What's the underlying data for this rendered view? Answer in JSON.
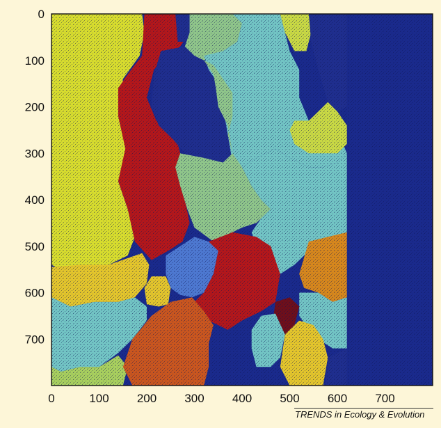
{
  "chart_data": {
    "type": "heatmap",
    "title": "",
    "xlabel": "",
    "ylabel": "",
    "xlim": [
      0,
      800
    ],
    "ylim": [
      0,
      800
    ],
    "y_axis_inverted": true,
    "grid": false,
    "legend": "none",
    "x_ticks": [
      "0",
      "100",
      "200",
      "300",
      "400",
      "500",
      "600",
      "700"
    ],
    "y_ticks": [
      "0",
      "100",
      "200",
      "300",
      "400",
      "500",
      "600",
      "700"
    ],
    "background_color": "#1a2a8c",
    "colormap": {
      "yellow": "#d7dc2e",
      "red": "#b3171b",
      "dark_blue": "#1f2e8e",
      "sage_green": "#8fc58a",
      "teal": "#72c4c4",
      "olive_yellow": "#c9d944",
      "gold": "#e3c52c",
      "orange": "#d6871d",
      "burnt_orange": "#c9561f",
      "blue": "#4d78d0",
      "dark_red": "#6e0f1b",
      "light_green": "#a8cf5e"
    },
    "regions": [
      {
        "color": "yellow",
        "points": [
          [
            0,
            0
          ],
          [
            190,
            0
          ],
          [
            195,
            40
          ],
          [
            185,
            90
          ],
          [
            150,
            140
          ],
          [
            150,
            220
          ],
          [
            160,
            290
          ],
          [
            140,
            360
          ],
          [
            160,
            420
          ],
          [
            175,
            480
          ],
          [
            160,
            520
          ],
          [
            120,
            540
          ],
          [
            100,
            545
          ],
          [
            60,
            540
          ],
          [
            20,
            550
          ],
          [
            0,
            540
          ]
        ]
      },
      {
        "color": "gold",
        "points": [
          [
            0,
            545
          ],
          [
            60,
            540
          ],
          [
            120,
            540
          ],
          [
            190,
            515
          ],
          [
            205,
            540
          ],
          [
            200,
            580
          ],
          [
            175,
            610
          ],
          [
            140,
            620
          ],
          [
            90,
            620
          ],
          [
            40,
            630
          ],
          [
            0,
            610
          ]
        ]
      },
      {
        "color": "gold",
        "points": [
          [
            210,
            565
          ],
          [
            240,
            565
          ],
          [
            250,
            590
          ],
          [
            245,
            625
          ],
          [
            225,
            630
          ],
          [
            200,
            625
          ],
          [
            195,
            590
          ]
        ]
      },
      {
        "color": "teal",
        "points": [
          [
            0,
            610
          ],
          [
            40,
            630
          ],
          [
            90,
            620
          ],
          [
            140,
            620
          ],
          [
            175,
            610
          ],
          [
            200,
            630
          ],
          [
            200,
            660
          ],
          [
            170,
            700
          ],
          [
            140,
            730
          ],
          [
            100,
            760
          ],
          [
            60,
            760
          ],
          [
            20,
            770
          ],
          [
            0,
            760
          ]
        ]
      },
      {
        "color": "light_green",
        "points": [
          [
            0,
            760
          ],
          [
            20,
            770
          ],
          [
            60,
            760
          ],
          [
            100,
            760
          ],
          [
            140,
            735
          ],
          [
            160,
            760
          ],
          [
            150,
            800
          ],
          [
            0,
            800
          ]
        ]
      },
      {
        "color": "red",
        "points": [
          [
            195,
            0
          ],
          [
            290,
            0
          ],
          [
            290,
            40
          ],
          [
            270,
            70
          ],
          [
            240,
            90
          ],
          [
            215,
            120
          ],
          [
            200,
            180
          ],
          [
            220,
            230
          ],
          [
            260,
            260
          ],
          [
            270,
            300
          ],
          [
            265,
            350
          ],
          [
            280,
            400
          ],
          [
            290,
            450
          ],
          [
            275,
            490
          ],
          [
            245,
            510
          ],
          [
            210,
            530
          ],
          [
            175,
            490
          ],
          [
            160,
            420
          ],
          [
            140,
            360
          ],
          [
            155,
            290
          ],
          [
            140,
            220
          ],
          [
            140,
            160
          ],
          [
            160,
            130
          ],
          [
            190,
            90
          ]
        ]
      },
      {
        "color": "dark_blue",
        "points": [
          [
            260,
            0
          ],
          [
            295,
            0
          ],
          [
            300,
            30
          ],
          [
            290,
            60
          ],
          [
            265,
            60
          ]
        ]
      },
      {
        "color": "dark_blue",
        "points": [
          [
            230,
            80
          ],
          [
            280,
            70
          ],
          [
            320,
            100
          ],
          [
            340,
            130
          ],
          [
            345,
            160
          ],
          [
            350,
            200
          ],
          [
            370,
            240
          ],
          [
            380,
            300
          ],
          [
            360,
            320
          ],
          [
            320,
            310
          ],
          [
            280,
            300
          ],
          [
            255,
            270
          ],
          [
            225,
            240
          ],
          [
            210,
            200
          ],
          [
            215,
            130
          ]
        ]
      },
      {
        "color": "sage_green",
        "points": [
          [
            290,
            0
          ],
          [
            380,
            0
          ],
          [
            400,
            20
          ],
          [
            390,
            60
          ],
          [
            360,
            80
          ],
          [
            320,
            100
          ],
          [
            300,
            90
          ],
          [
            280,
            70
          ],
          [
            290,
            40
          ]
        ]
      },
      {
        "color": "teal",
        "points": [
          [
            380,
            0
          ],
          [
            480,
            0
          ],
          [
            490,
            40
          ],
          [
            500,
            80
          ],
          [
            520,
            120
          ],
          [
            520,
            180
          ],
          [
            540,
            230
          ],
          [
            560,
            220
          ],
          [
            600,
            250
          ],
          [
            620,
            300
          ],
          [
            600,
            320
          ],
          [
            570,
            330
          ],
          [
            540,
            330
          ],
          [
            500,
            310
          ],
          [
            470,
            290
          ],
          [
            450,
            300
          ],
          [
            430,
            310
          ],
          [
            400,
            330
          ],
          [
            380,
            320
          ],
          [
            370,
            260
          ],
          [
            360,
            200
          ],
          [
            350,
            150
          ],
          [
            330,
            120
          ],
          [
            320,
            90
          ],
          [
            360,
            80
          ],
          [
            390,
            60
          ],
          [
            400,
            20
          ]
        ]
      },
      {
        "color": "sage_green",
        "points": [
          [
            320,
            100
          ],
          [
            340,
            110
          ],
          [
            360,
            140
          ],
          [
            380,
            170
          ],
          [
            380,
            220
          ],
          [
            370,
            260
          ],
          [
            380,
            300
          ],
          [
            400,
            330
          ],
          [
            420,
            370
          ],
          [
            440,
            400
          ],
          [
            460,
            420
          ],
          [
            430,
            450
          ],
          [
            400,
            460
          ],
          [
            380,
            470
          ],
          [
            340,
            490
          ],
          [
            300,
            460
          ],
          [
            285,
            420
          ],
          [
            270,
            370
          ],
          [
            260,
            330
          ],
          [
            270,
            300
          ],
          [
            320,
            310
          ],
          [
            360,
            320
          ],
          [
            380,
            300
          ],
          [
            370,
            240
          ],
          [
            350,
            200
          ],
          [
            345,
            160
          ],
          [
            340,
            130
          ]
        ]
      },
      {
        "color": "olive_yellow",
        "points": [
          [
            480,
            0
          ],
          [
            540,
            0
          ],
          [
            545,
            40
          ],
          [
            535,
            80
          ],
          [
            510,
            80
          ],
          [
            490,
            40
          ]
        ]
      },
      {
        "color": "dark_blue",
        "points": [
          [
            540,
            0
          ],
          [
            620,
            0
          ],
          [
            620,
            200
          ],
          [
            600,
            210
          ],
          [
            580,
            190
          ],
          [
            560,
            120
          ],
          [
            545,
            60
          ]
        ]
      },
      {
        "color": "olive_yellow",
        "points": [
          [
            510,
            230
          ],
          [
            540,
            230
          ],
          [
            560,
            210
          ],
          [
            580,
            190
          ],
          [
            600,
            210
          ],
          [
            620,
            240
          ],
          [
            620,
            280
          ],
          [
            600,
            300
          ],
          [
            570,
            300
          ],
          [
            540,
            300
          ],
          [
            510,
            280
          ],
          [
            500,
            250
          ]
        ]
      },
      {
        "color": "teal",
        "points": [
          [
            400,
            330
          ],
          [
            430,
            310
          ],
          [
            450,
            300
          ],
          [
            470,
            290
          ],
          [
            500,
            310
          ],
          [
            540,
            330
          ],
          [
            570,
            330
          ],
          [
            600,
            320
          ],
          [
            620,
            300
          ],
          [
            620,
            470
          ],
          [
            590,
            480
          ],
          [
            560,
            500
          ],
          [
            530,
            520
          ],
          [
            510,
            540
          ],
          [
            480,
            560
          ],
          [
            460,
            540
          ],
          [
            430,
            500
          ],
          [
            420,
            470
          ],
          [
            440,
            440
          ],
          [
            460,
            420
          ],
          [
            440,
            400
          ],
          [
            420,
            370
          ]
        ]
      },
      {
        "color": "orange",
        "points": [
          [
            540,
            490
          ],
          [
            580,
            480
          ],
          [
            620,
            470
          ],
          [
            620,
            610
          ],
          [
            590,
            620
          ],
          [
            560,
            600
          ],
          [
            530,
            590
          ],
          [
            520,
            560
          ]
        ]
      },
      {
        "color": "teal",
        "points": [
          [
            520,
            600
          ],
          [
            560,
            600
          ],
          [
            590,
            620
          ],
          [
            620,
            610
          ],
          [
            620,
            720
          ],
          [
            590,
            720
          ],
          [
            560,
            700
          ],
          [
            540,
            680
          ],
          [
            520,
            650
          ]
        ]
      },
      {
        "color": "blue",
        "points": [
          [
            240,
            520
          ],
          [
            270,
            500
          ],
          [
            300,
            480
          ],
          [
            330,
            490
          ],
          [
            350,
            510
          ],
          [
            340,
            560
          ],
          [
            320,
            600
          ],
          [
            295,
            610
          ],
          [
            270,
            605
          ],
          [
            250,
            590
          ],
          [
            240,
            560
          ]
        ]
      },
      {
        "color": "red",
        "points": [
          [
            330,
            490
          ],
          [
            380,
            470
          ],
          [
            430,
            480
          ],
          [
            460,
            500
          ],
          [
            480,
            560
          ],
          [
            470,
            620
          ],
          [
            440,
            640
          ],
          [
            400,
            660
          ],
          [
            370,
            680
          ],
          [
            330,
            660
          ],
          [
            300,
            620
          ],
          [
            320,
            600
          ],
          [
            340,
            560
          ],
          [
            350,
            510
          ]
        ]
      },
      {
        "color": "burnt_orange",
        "points": [
          [
            170,
            700
          ],
          [
            210,
            650
          ],
          [
            250,
            620
          ],
          [
            295,
            610
          ],
          [
            320,
            640
          ],
          [
            340,
            670
          ],
          [
            330,
            710
          ],
          [
            330,
            760
          ],
          [
            320,
            800
          ],
          [
            170,
            800
          ],
          [
            150,
            760
          ]
        ]
      },
      {
        "color": "dark_red",
        "points": [
          [
            470,
            620
          ],
          [
            500,
            610
          ],
          [
            520,
            630
          ],
          [
            510,
            670
          ],
          [
            490,
            690
          ],
          [
            465,
            660
          ]
        ]
      },
      {
        "color": "teal",
        "points": [
          [
            420,
            680
          ],
          [
            440,
            650
          ],
          [
            470,
            645
          ],
          [
            490,
            690
          ],
          [
            480,
            740
          ],
          [
            460,
            760
          ],
          [
            430,
            760
          ],
          [
            420,
            720
          ]
        ]
      },
      {
        "color": "gold",
        "points": [
          [
            490,
            690
          ],
          [
            520,
            660
          ],
          [
            550,
            670
          ],
          [
            570,
            700
          ],
          [
            580,
            740
          ],
          [
            570,
            800
          ],
          [
            500,
            800
          ],
          [
            480,
            760
          ]
        ]
      },
      {
        "color": "dark_blue",
        "points": [
          [
            580,
            740
          ],
          [
            620,
            720
          ],
          [
            620,
            800
          ],
          [
            575,
            800
          ]
        ]
      }
    ]
  },
  "credit_text": "TRENDS in Ecology & Evolution"
}
